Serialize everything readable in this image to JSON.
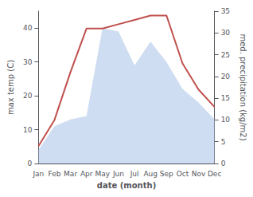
{
  "chart_data": {
    "type": "area",
    "categories": [
      "Jan",
      "Feb",
      "Mar",
      "Apr",
      "May",
      "Jun",
      "Jul",
      "Aug",
      "Sep",
      "Oct",
      "Nov",
      "Dec"
    ],
    "series": [
      {
        "type": "area",
        "color": "#aec6e8",
        "values": [
          4,
          11,
          13,
          14,
          40,
          39,
          29,
          36,
          30,
          22,
          18,
          13
        ]
      },
      {
        "type": "line",
        "axis": "y2",
        "color": "#c0504d",
        "values": [
          4,
          10,
          21,
          31,
          31,
          32,
          33,
          34,
          34,
          23,
          17,
          13
        ]
      }
    ],
    "xlabel": "date (month)",
    "ylabel": "max temp (C)",
    "y2label": "med. precipitation (kg/m2)",
    "ylim": [
      0,
      45
    ],
    "yticks": [
      0,
      10,
      20,
      30,
      40
    ],
    "y2lim": [
      0,
      35
    ],
    "y2ticks": [
      0,
      5,
      10,
      15,
      20,
      25,
      30,
      35
    ],
    "grid": false
  }
}
